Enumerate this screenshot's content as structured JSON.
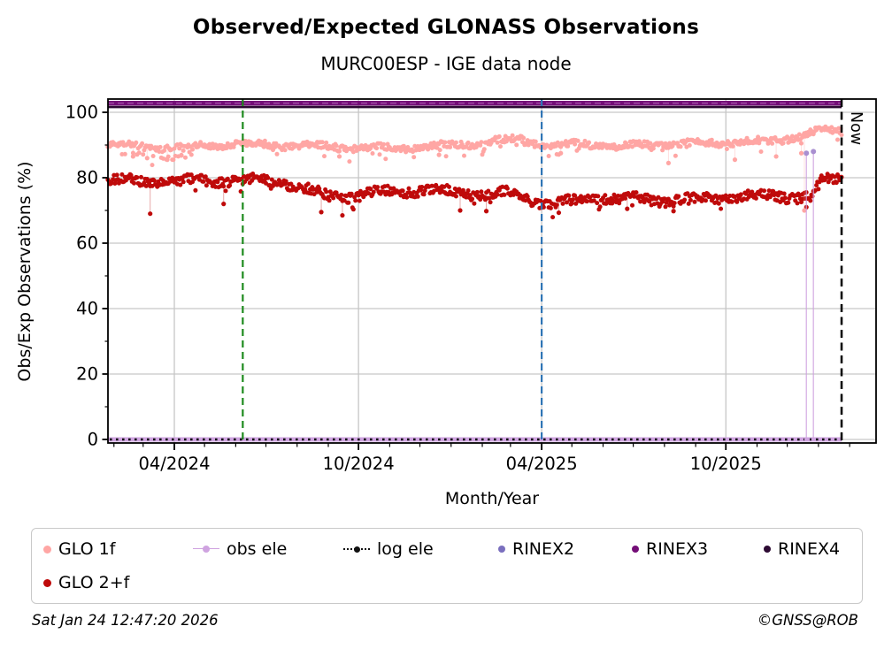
{
  "title": "Observed/Expected GLONASS Observations",
  "subtitle": "MURC00ESP - IGE data node",
  "footer": {
    "timestamp": "Sat Jan 24 12:47:20 2026",
    "credit": "©GNSS@ROB"
  },
  "chart_data": {
    "type": "scatter",
    "title": "Observed/Expected GLONASS Observations",
    "subtitle": "MURC00ESP - IGE data node",
    "xlabel": "Month/Year",
    "ylabel": "Obs/Exp Observations (%)",
    "ylim": [
      -1.1,
      104.1
    ],
    "x_range": [
      "2024-01-26",
      "2026-02-26"
    ],
    "x_major_ticks": [
      "04/2024",
      "10/2024",
      "04/2025",
      "10/2025"
    ],
    "x_minor_ticks": "monthly",
    "y_major_ticks": [
      0,
      20,
      40,
      60,
      80,
      100
    ],
    "y_minor_ticks": [
      10,
      30,
      50,
      70,
      90
    ],
    "grid": true,
    "grid_color": "#c6c6c6",
    "now_line": {
      "date": "2026-01-24",
      "label": "Now",
      "color": "#000000",
      "style": "dashed"
    },
    "vlines": [
      {
        "name": "green-marker-line",
        "date": "2024-06-08",
        "color": "#1d8a1d",
        "style": "dashed"
      },
      {
        "name": "blue-marker-line",
        "date": "2025-04-01",
        "color": "#2e74b5",
        "style": "dashed"
      }
    ],
    "series": [
      {
        "name": "GLO 1f",
        "type": "scatter-daily",
        "color": "#ffa6a4",
        "anchors": [
          [
            "2024-01-26",
            90.0
          ],
          [
            "2024-02-15",
            89.8
          ],
          [
            "2024-03-15",
            89.3
          ],
          [
            "2024-04-15",
            89.6
          ],
          [
            "2024-05-15",
            90.2
          ],
          [
            "2024-06-15",
            90.3
          ],
          [
            "2024-07-15",
            89.9
          ],
          [
            "2024-08-15",
            89.8
          ],
          [
            "2024-09-15",
            89.3
          ],
          [
            "2024-10-15",
            89.0
          ],
          [
            "2024-11-15",
            89.2
          ],
          [
            "2024-12-15",
            89.6
          ],
          [
            "2025-01-15",
            90.2
          ],
          [
            "2025-02-15",
            91.3
          ],
          [
            "2025-03-10",
            91.8
          ],
          [
            "2025-04-05",
            89.8
          ],
          [
            "2025-05-15",
            90.3
          ],
          [
            "2025-06-15",
            89.6
          ],
          [
            "2025-07-15",
            90.0
          ],
          [
            "2025-08-15",
            90.4
          ],
          [
            "2025-09-15",
            90.6
          ],
          [
            "2025-10-15",
            91.0
          ],
          [
            "2025-11-15",
            91.1
          ],
          [
            "2025-12-10",
            92.5
          ],
          [
            "2025-12-28",
            94.2
          ],
          [
            "2026-01-10",
            94.6
          ],
          [
            "2026-01-24",
            94.2
          ]
        ],
        "outliers": [
          [
            "2024-02-20",
            86.5
          ],
          [
            "2024-03-05",
            86.0
          ],
          [
            "2024-03-25",
            85.5
          ],
          [
            "2024-04-08",
            86.8
          ],
          [
            "2024-09-12",
            86.5
          ],
          [
            "2024-12-20",
            87.0
          ],
          [
            "2025-04-20",
            87.5
          ],
          [
            "2025-08-05",
            84.5
          ],
          [
            "2025-10-10",
            85.5
          ],
          [
            "2025-11-20",
            86.5
          ],
          [
            "2025-12-15",
            87.5
          ],
          [
            "2025-12-18",
            70.0
          ]
        ]
      },
      {
        "name": "GLO 2+f",
        "type": "scatter-daily",
        "color": "#bf0a0a",
        "anchors": [
          [
            "2024-01-26",
            79.3
          ],
          [
            "2024-03-01",
            78.8
          ],
          [
            "2024-04-15",
            78.9
          ],
          [
            "2024-06-01",
            79.2
          ],
          [
            "2024-07-15",
            78.8
          ],
          [
            "2024-08-10",
            76.5
          ],
          [
            "2024-09-01",
            74.3
          ],
          [
            "2024-10-01",
            74.6
          ],
          [
            "2024-11-01",
            75.8
          ],
          [
            "2024-12-01",
            76.2
          ],
          [
            "2025-01-05",
            75.6
          ],
          [
            "2025-02-01",
            74.8
          ],
          [
            "2025-03-01",
            75.3
          ],
          [
            "2025-04-05",
            72.2
          ],
          [
            "2025-05-01",
            72.6
          ],
          [
            "2025-06-01",
            74.0
          ],
          [
            "2025-07-01",
            73.6
          ],
          [
            "2025-08-01",
            73.0
          ],
          [
            "2025-09-01",
            73.5
          ],
          [
            "2025-10-01",
            73.8
          ],
          [
            "2025-11-01",
            74.4
          ],
          [
            "2025-12-05",
            74.3
          ],
          [
            "2025-12-26",
            74.0
          ],
          [
            "2026-01-04",
            78.8
          ],
          [
            "2026-01-24",
            79.6
          ]
        ],
        "outliers": [
          [
            "2024-03-08",
            69.0
          ],
          [
            "2024-05-20",
            72.0
          ],
          [
            "2024-08-25",
            69.5
          ],
          [
            "2024-09-15",
            68.5
          ],
          [
            "2025-01-10",
            70.0
          ],
          [
            "2025-02-05",
            69.8
          ],
          [
            "2025-04-18",
            69.3
          ],
          [
            "2025-06-25",
            70.5
          ],
          [
            "2025-08-10",
            69.8
          ],
          [
            "2025-12-20",
            71.0
          ]
        ]
      },
      {
        "name": "obs ele",
        "type": "line",
        "color": "#cfa3e0",
        "value": 0,
        "spikes": [
          {
            "date": "2025-12-20",
            "peak": 87.5
          },
          {
            "date": "2025-12-27",
            "peak": 88.0
          }
        ]
      },
      {
        "name": "log ele",
        "type": "dotted-line",
        "color": "#111111",
        "value": 0
      },
      {
        "name": "RINEX2",
        "type": "legend-only",
        "color": "#7a6fbe"
      },
      {
        "name": "RINEX3",
        "type": "marker-row",
        "color": "#740e77",
        "value": 102.8
      },
      {
        "name": "RINEX4",
        "type": "marker-row",
        "color": "#2d0a33",
        "value": 101.6
      }
    ],
    "legend": {
      "position": "below",
      "rows": [
        [
          "GLO 1f",
          "obs ele",
          "log ele",
          "RINEX2",
          "RINEX3",
          "RINEX4"
        ],
        [
          "GLO 2+f"
        ]
      ]
    }
  }
}
